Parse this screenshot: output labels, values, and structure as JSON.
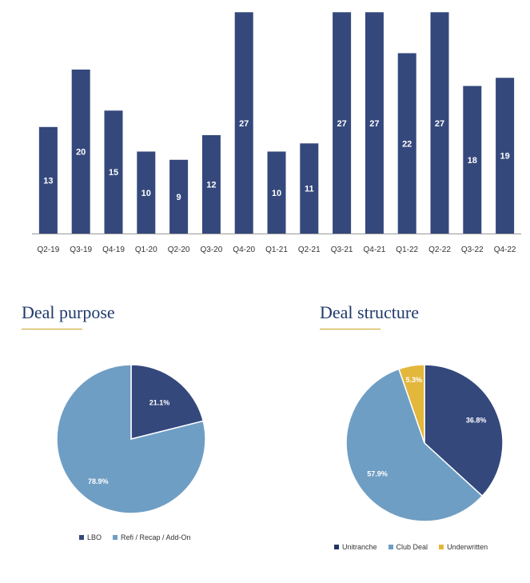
{
  "colors": {
    "navy": "#34487c",
    "dark_navy": "#1f3566",
    "light_blue": "#6f9ec4",
    "gold": "#e3b73c",
    "title": "#1f3a6b",
    "underline": "#c9a227",
    "axis": "#333333"
  },
  "chart_data": [
    {
      "type": "bar",
      "title": "",
      "categories": [
        "Q2-19",
        "Q3-19",
        "Q4-19",
        "Q1-20",
        "Q2-20",
        "Q3-20",
        "Q4-20",
        "Q1-21",
        "Q2-21",
        "Q3-21",
        "Q4-21",
        "Q1-22",
        "Q2-22",
        "Q3-22",
        "Q4-22"
      ],
      "values": [
        13,
        20,
        15,
        10,
        9,
        12,
        27,
        10,
        11,
        27,
        27,
        22,
        27,
        18,
        19
      ],
      "data_labels": [
        "13",
        "20",
        "15",
        "10",
        "9",
        "12",
        "27",
        "10",
        "11",
        "27",
        "27",
        "22",
        "27",
        "18",
        "19"
      ],
      "xlabel": "",
      "ylabel": "",
      "grid": false
    },
    {
      "type": "pie",
      "title": "Deal purpose",
      "slices": [
        {
          "label": "LBO",
          "value": 21.1,
          "display": "21.1%",
          "color": "#34487c"
        },
        {
          "label": "Refi / Recap / Add-On",
          "value": 78.9,
          "display": "78.9%",
          "color": "#6f9ec4"
        }
      ],
      "legend_position": "bottom"
    },
    {
      "type": "pie",
      "title": "Deal structure",
      "slices": [
        {
          "label": "Unitranche",
          "value": 36.8,
          "display": "36.8%",
          "color": "#34487c"
        },
        {
          "label": "Club Deal",
          "value": 57.9,
          "display": "57.9%",
          "color": "#6f9ec4"
        },
        {
          "label": "Underwritten",
          "value": 5.3,
          "display": "5.3%",
          "color": "#e3b73c"
        }
      ],
      "legend_position": "bottom"
    }
  ]
}
